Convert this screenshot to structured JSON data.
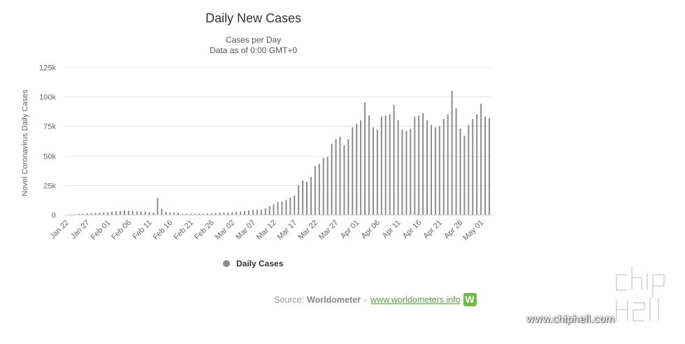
{
  "title": "Daily New Cases",
  "subtitle_line1": "Cases per Day",
  "subtitle_line2": "Data as of 0:00 GMT+0",
  "legend_label": "Daily Cases",
  "source": {
    "prefix": "Source:",
    "name": "Worldometer",
    "separator": "-",
    "url_text": "www.worldometers.info",
    "logo_letter": "W"
  },
  "watermark": {
    "url_text": "www.chiphell.com"
  },
  "colors": {
    "bar": "#8c8c8c",
    "grid": "#e6e6e6",
    "source_link": "#56a33f",
    "logo": "#6dbb47"
  },
  "chart_data": {
    "type": "bar",
    "title": "Daily New Cases",
    "subtitle": "Cases per Day / Data as of 0:00 GMT+0",
    "ylabel": "Novel Coronavirus Daily Cases",
    "xlabel": "",
    "ylim": [
      0,
      125000
    ],
    "y_ticks": [
      0,
      25000,
      50000,
      75000,
      100000,
      125000
    ],
    "y_tick_labels": [
      "0",
      "25k",
      "50k",
      "75k",
      "100k",
      "125k"
    ],
    "x_tick_labels": [
      "Jan 22",
      "Jan 27",
      "Feb 01",
      "Feb 06",
      "Feb 11",
      "Feb 16",
      "Feb 21",
      "Feb 26",
      "Mar 02",
      "Mar 07",
      "Mar 12",
      "Mar 17",
      "Mar 22",
      "Mar 27",
      "Apr 01",
      "Apr 06",
      "Apr 11",
      "Apr 16",
      "Apr 21",
      "Apr 26",
      "May 01"
    ],
    "grid": true,
    "legend_position": "bottom-center",
    "series": [
      {
        "name": "Daily Cases",
        "categories": [
          "Jan 22",
          "Jan 23",
          "Jan 24",
          "Jan 25",
          "Jan 26",
          "Jan 27",
          "Jan 28",
          "Jan 29",
          "Jan 30",
          "Jan 31",
          "Feb 01",
          "Feb 02",
          "Feb 03",
          "Feb 04",
          "Feb 05",
          "Feb 06",
          "Feb 07",
          "Feb 08",
          "Feb 09",
          "Feb 10",
          "Feb 11",
          "Feb 12",
          "Feb 13",
          "Feb 14",
          "Feb 15",
          "Feb 16",
          "Feb 17",
          "Feb 18",
          "Feb 19",
          "Feb 20",
          "Feb 21",
          "Feb 22",
          "Feb 23",
          "Feb 24",
          "Feb 25",
          "Feb 26",
          "Feb 27",
          "Feb 28",
          "Feb 29",
          "Mar 01",
          "Mar 02",
          "Mar 03",
          "Mar 04",
          "Mar 05",
          "Mar 06",
          "Mar 07",
          "Mar 08",
          "Mar 09",
          "Mar 10",
          "Mar 11",
          "Mar 12",
          "Mar 13",
          "Mar 14",
          "Mar 15",
          "Mar 16",
          "Mar 17",
          "Mar 18",
          "Mar 19",
          "Mar 20",
          "Mar 21",
          "Mar 22",
          "Mar 23",
          "Mar 24",
          "Mar 25",
          "Mar 26",
          "Mar 27",
          "Mar 28",
          "Mar 29",
          "Mar 30",
          "Mar 31",
          "Apr 01",
          "Apr 02",
          "Apr 03",
          "Apr 04",
          "Apr 05",
          "Apr 06",
          "Apr 07",
          "Apr 08",
          "Apr 09",
          "Apr 10",
          "Apr 11",
          "Apr 12",
          "Apr 13",
          "Apr 14",
          "Apr 15",
          "Apr 16",
          "Apr 17",
          "Apr 18",
          "Apr 19",
          "Apr 20",
          "Apr 21",
          "Apr 22",
          "Apr 23",
          "Apr 24",
          "Apr 25",
          "Apr 26",
          "Apr 27",
          "Apr 28",
          "Apr 29",
          "Apr 30",
          "May 01",
          "May 02",
          "May 03"
        ],
        "values": [
          0,
          100,
          300,
          700,
          800,
          1100,
          1300,
          1500,
          1700,
          2000,
          2100,
          2600,
          3000,
          3100,
          3700,
          3400,
          2900,
          2800,
          2600,
          2500,
          2000,
          1600,
          14000,
          5000,
          2500,
          2100,
          1900,
          1800,
          600,
          700,
          1000,
          800,
          700,
          700,
          1100,
          1300,
          1400,
          1700,
          1900,
          1900,
          2200,
          2600,
          2500,
          3000,
          3700,
          4000,
          4100,
          4200,
          5300,
          7500,
          8700,
          10800,
          11100,
          12500,
          14500,
          16000,
          25000,
          29000,
          28000,
          32000,
          41000,
          43000,
          48000,
          49000,
          60000,
          64000,
          66000,
          59000,
          64000,
          74000,
          77000,
          80000,
          95000,
          84000,
          74000,
          72000,
          83000,
          84000,
          85000,
          93000,
          80000,
          72000,
          71000,
          73000,
          83000,
          84000,
          86000,
          80000,
          76000,
          74000,
          75000,
          81000,
          85000,
          105000,
          90000,
          73000,
          67000,
          76000,
          81000,
          85000,
          94000,
          83000,
          82000
        ]
      }
    ]
  }
}
